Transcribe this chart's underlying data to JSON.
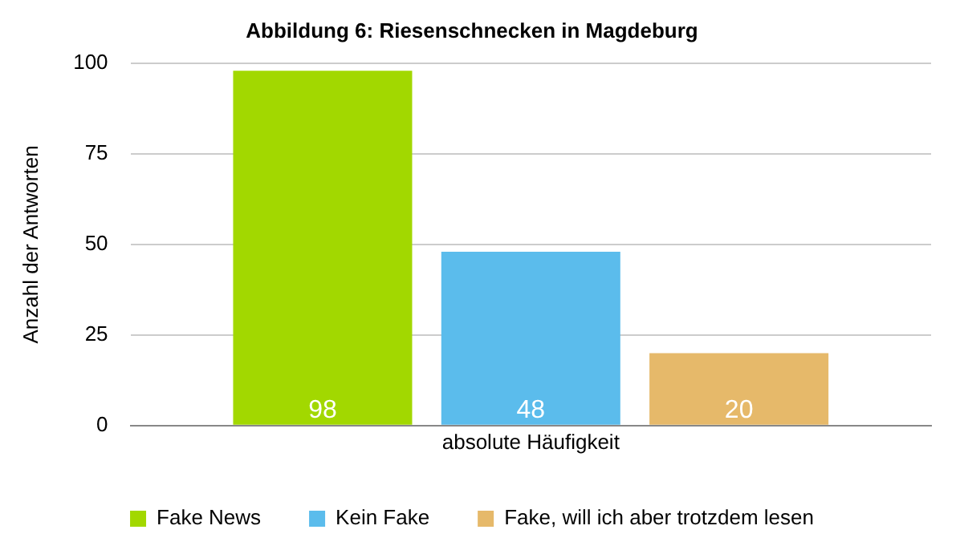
{
  "chart_data": {
    "type": "bar",
    "title": "Abbildung 6: Riesenschnecken in Magdeburg",
    "ylabel": "Anzahl der Antworten",
    "categories": [
      "absolute Häufigkeit"
    ],
    "series": [
      {
        "name": "Fake News",
        "color": "#a2d800",
        "values": [
          98
        ]
      },
      {
        "name": "Kein Fake",
        "color": "#5bbcec",
        "values": [
          48
        ]
      },
      {
        "name": "Fake, will ich aber trotzdem lesen",
        "color": "#e6b96a",
        "values": [
          20
        ]
      }
    ],
    "ylim": [
      0,
      100
    ],
    "yticks": [
      0,
      25,
      50,
      75,
      100
    ],
    "grid": "y",
    "legend": "bottom",
    "data_labels": true
  }
}
